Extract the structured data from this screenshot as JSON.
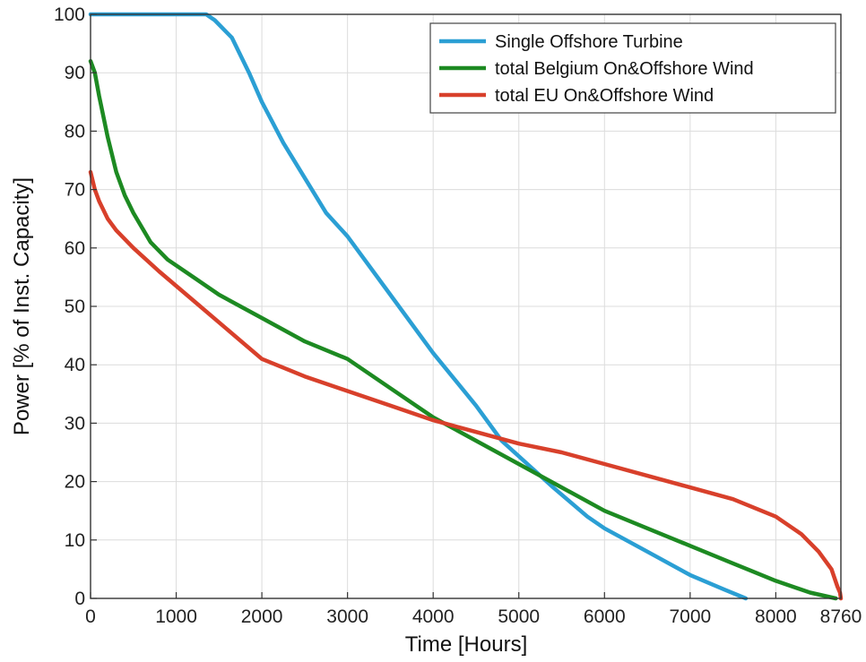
{
  "chart_data": {
    "type": "line",
    "xlabel": "Time [Hours]",
    "ylabel": "Power [% of Inst. Capacity]",
    "xlim": [
      0,
      8760
    ],
    "ylim": [
      0,
      100
    ],
    "x_ticks": [
      0,
      1000,
      2000,
      3000,
      4000,
      5000,
      6000,
      7000,
      8000,
      8760
    ],
    "x_tick_labels": [
      "0",
      "1000",
      "2000",
      "3000",
      "4000",
      "5000",
      "6000",
      "7000",
      "8000",
      "8760"
    ],
    "y_ticks": [
      0,
      10,
      20,
      30,
      40,
      50,
      60,
      70,
      80,
      90,
      100
    ],
    "y_tick_labels": [
      "0",
      "10",
      "20",
      "30",
      "40",
      "50",
      "60",
      "70",
      "80",
      "90",
      "100"
    ],
    "grid": true,
    "legend_position": "top-right",
    "series": [
      {
        "name": "Single Offshore Turbine",
        "color": "#2b9fd4",
        "x": [
          0,
          500,
          1000,
          1350,
          1450,
          1650,
          1850,
          2000,
          2250,
          2500,
          2750,
          3000,
          3500,
          4000,
          4500,
          4800,
          5100,
          5400,
          5800,
          6000,
          6500,
          7000,
          7400,
          7650
        ],
        "y": [
          100,
          100,
          100,
          100,
          99,
          96,
          90,
          85,
          78,
          72,
          66,
          62,
          52,
          42,
          33,
          27,
          23,
          19,
          14,
          12,
          8,
          4,
          1.5,
          0
        ]
      },
      {
        "name": "total Belgium On&Offshore Wind",
        "color": "#1d8a22",
        "x": [
          0,
          50,
          100,
          200,
          300,
          400,
          500,
          700,
          900,
          1200,
          1500,
          2000,
          2500,
          3000,
          3500,
          4000,
          4500,
          5000,
          5500,
          6000,
          6500,
          7000,
          7500,
          8000,
          8400,
          8700
        ],
        "y": [
          92,
          90,
          86,
          79,
          73,
          69,
          66,
          61,
          58,
          55,
          52,
          48,
          44,
          41,
          36,
          31,
          27,
          23,
          19,
          15,
          12,
          9,
          6,
          3,
          1,
          0
        ]
      },
      {
        "name": "total EU On&Offshore Wind",
        "color": "#d8402b",
        "x": [
          0,
          50,
          100,
          200,
          300,
          500,
          800,
          1200,
          1600,
          2000,
          2500,
          3000,
          3500,
          4000,
          4500,
          5000,
          5500,
          6000,
          6500,
          7000,
          7500,
          8000,
          8300,
          8500,
          8650,
          8720,
          8750,
          8760
        ],
        "y": [
          73,
          70,
          68,
          65,
          63,
          60,
          56,
          51,
          46,
          41,
          38,
          35.5,
          33,
          30.5,
          28.5,
          26.5,
          25,
          23,
          21,
          19,
          17,
          14,
          11,
          8,
          5,
          2,
          1,
          0
        ]
      }
    ]
  }
}
